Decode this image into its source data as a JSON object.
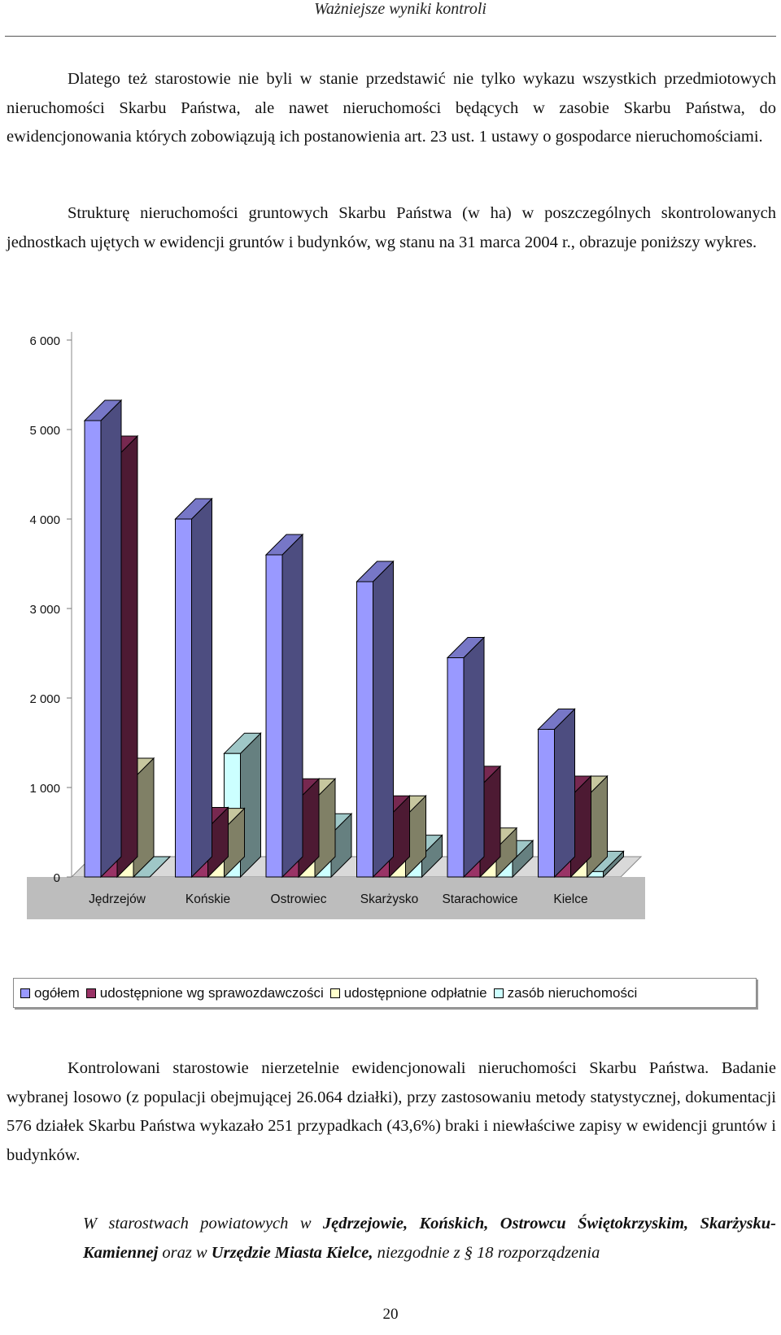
{
  "header": {
    "title": "Ważniejsze wyniki kontroli"
  },
  "paragraphs": {
    "p1": "Dlatego też starostowie nie byli w stanie przedstawić nie tylko wykazu wszystkich przedmiotowych nieruchomości Skarbu Państwa, ale nawet nieruchomości będących w zasobie Skarbu Państwa, do ewidencjonowania których zobowiązują ich postanowienia art. 23 ust. 1 ustawy o gospodarce nieruchomościami.",
    "p2": "Strukturę nieruchomości gruntowych Skarbu Państwa (w ha) w poszczególnych skontrolowanych jednostkach ujętych w ewidencji gruntów i budynków, wg stanu na 31 marca 2004 r., obrazuje poniższy wykres.",
    "p3": "Kontrolowani starostowie nierzetelnie ewidencjonowali nieruchomości Skarbu Państwa. Badanie wybranej losowo (z populacji obejmującej 26.064 działki), przy zastosowaniu metody statystycznej, dokumentacji 576 działek Skarbu Państwa wykazało 251 przypadkach (43,6%) braki i niewłaściwe zapisy w ewidencji gruntów i budynków.",
    "p4_parts": [
      "W starostwach powiatowych w ",
      "Jędrzejowie, Końskich, Ostrowcu Świętokrzyskim, Skarżysku-Kamiennej",
      " oraz w ",
      "Urzędzie Miasta Kielce,",
      " niezgodnie z § 18 rozporządzenia"
    ]
  },
  "chart_data": {
    "type": "bar",
    "title": "",
    "xlabel": "",
    "ylabel": "",
    "ylim": [
      0,
      6000
    ],
    "yticks": [
      "0",
      "1 000",
      "2 000",
      "3 000",
      "4 000",
      "5 000",
      "6 000"
    ],
    "ytick_values": [
      0,
      1000,
      2000,
      3000,
      4000,
      5000,
      6000
    ],
    "categories": [
      "Jędrzejów",
      "Końskie",
      "Ostrowiec",
      "Skarżysko",
      "Starachowice",
      "Kielce"
    ],
    "series": [
      {
        "name": "ogółem",
        "color": "#9999ff",
        "values": [
          5100,
          4000,
          3600,
          3300,
          2450,
          1650
        ]
      },
      {
        "name": "udostępnione wg sprawozdawczości",
        "color": "#993366",
        "values": [
          4700,
          550,
          870,
          680,
          1010,
          900
        ]
      },
      {
        "name": "udostępnione odpłatnie",
        "color": "#ffffcc",
        "values": [
          1100,
          540,
          870,
          680,
          320,
          900
        ]
      },
      {
        "name": "zasób nieruchomości",
        "color": "#ccffff",
        "values": [
          0,
          1380,
          480,
          240,
          180,
          60
        ]
      }
    ],
    "legend_position": "bottom"
  },
  "page": {
    "number": "20"
  }
}
